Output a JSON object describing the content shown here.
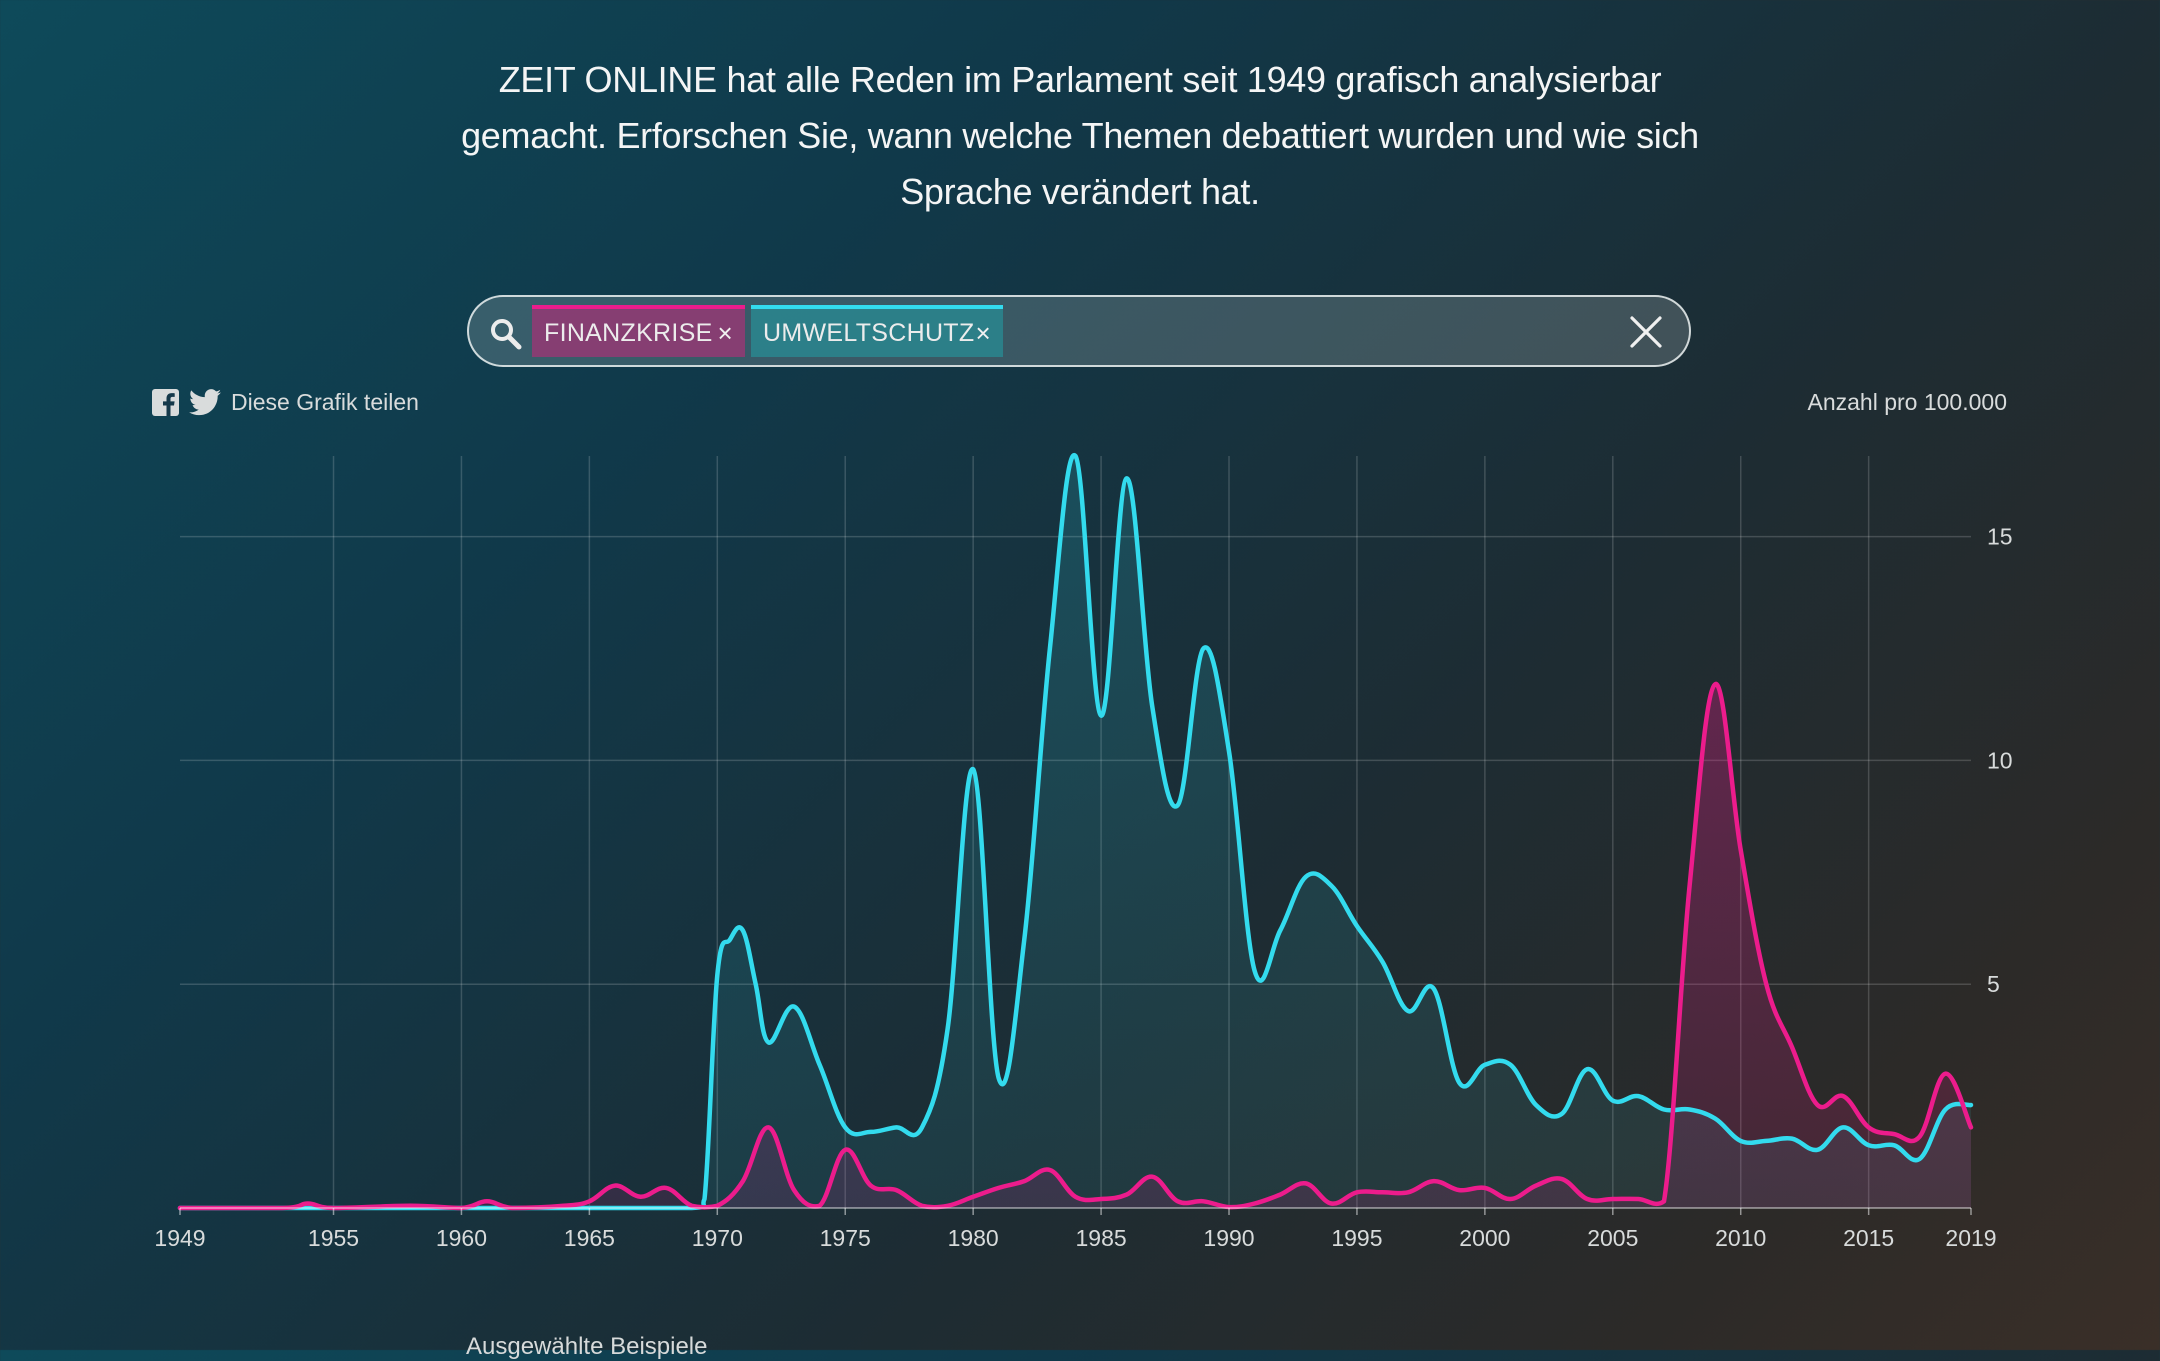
{
  "header": {
    "intro_text": "ZEIT ONLINE hat alle Reden im Parlament seit 1949 grafisch analysierbar gemacht. Erforschen Sie, wann welche Themen debattiert wurden und wie sich Sprache verändert hat."
  },
  "search": {
    "tags": [
      {
        "label": "FINANZKRISE",
        "remove_glyph": "×"
      },
      {
        "label": "UMWELTSCHUTZ",
        "remove_glyph": "×"
      }
    ]
  },
  "share": {
    "label": "Diese Grafik teilen"
  },
  "colors": {
    "finanzkrise": "#ec1c8c",
    "umweltschutz": "#33dbee"
  },
  "footer": {
    "label": "Ausgewählte Beispiele"
  },
  "chart_data": {
    "type": "line",
    "title": "",
    "xlabel": "",
    "ylabel": "Anzahl pro 100.000",
    "xlim": [
      1949,
      2019
    ],
    "ylim": [
      0,
      16.8
    ],
    "x_ticks": [
      1949,
      1955,
      1960,
      1965,
      1970,
      1975,
      1980,
      1985,
      1990,
      1995,
      2000,
      2005,
      2010,
      2015,
      2019
    ],
    "y_ticks": [
      5,
      10,
      15
    ],
    "grid": true,
    "series": [
      {
        "name": "UMWELTSCHUTZ",
        "points": [
          [
            1949,
            0
          ],
          [
            1955,
            0
          ],
          [
            1960,
            0
          ],
          [
            1965,
            0
          ],
          [
            1969,
            0
          ],
          [
            1969.5,
            0.2
          ],
          [
            1970,
            5.2
          ],
          [
            1970.5,
            6.0
          ],
          [
            1971,
            6.2
          ],
          [
            1971.5,
            5.0
          ],
          [
            1972,
            3.7
          ],
          [
            1973,
            4.5
          ],
          [
            1974,
            3.2
          ],
          [
            1975,
            1.8
          ],
          [
            1976,
            1.7
          ],
          [
            1977,
            1.8
          ],
          [
            1978,
            1.8
          ],
          [
            1979,
            4.0
          ],
          [
            1980,
            9.8
          ],
          [
            1981,
            2.9
          ],
          [
            1982,
            6.0
          ],
          [
            1983,
            12.5
          ],
          [
            1984,
            16.8
          ],
          [
            1985,
            11.0
          ],
          [
            1986,
            16.3
          ],
          [
            1987,
            11.2
          ],
          [
            1988,
            9.0
          ],
          [
            1989,
            12.5
          ],
          [
            1990,
            10.2
          ],
          [
            1991,
            5.3
          ],
          [
            1992,
            6.2
          ],
          [
            1993,
            7.4
          ],
          [
            1994,
            7.2
          ],
          [
            1995,
            6.3
          ],
          [
            1996,
            5.5
          ],
          [
            1997,
            4.4
          ],
          [
            1998,
            4.9
          ],
          [
            1999,
            2.8
          ],
          [
            2000,
            3.2
          ],
          [
            2001,
            3.2
          ],
          [
            2002,
            2.3
          ],
          [
            2003,
            2.1
          ],
          [
            2004,
            3.1
          ],
          [
            2005,
            2.4
          ],
          [
            2006,
            2.5
          ],
          [
            2007,
            2.2
          ],
          [
            2008,
            2.2
          ],
          [
            2009,
            2.0
          ],
          [
            2010,
            1.5
          ],
          [
            2011,
            1.5
          ],
          [
            2012,
            1.55
          ],
          [
            2013,
            1.3
          ],
          [
            2014,
            1.8
          ],
          [
            2015,
            1.4
          ],
          [
            2016,
            1.4
          ],
          [
            2017,
            1.1
          ],
          [
            2018,
            2.2
          ],
          [
            2019,
            2.3
          ]
        ]
      },
      {
        "name": "FINANZKRISE",
        "points": [
          [
            1949,
            0
          ],
          [
            1953,
            0
          ],
          [
            1954,
            0.1
          ],
          [
            1955,
            0
          ],
          [
            1958,
            0.05
          ],
          [
            1960,
            0
          ],
          [
            1961,
            0.15
          ],
          [
            1962,
            0
          ],
          [
            1964,
            0.05
          ],
          [
            1965,
            0.15
          ],
          [
            1966,
            0.5
          ],
          [
            1967,
            0.25
          ],
          [
            1968,
            0.45
          ],
          [
            1969,
            0.05
          ],
          [
            1970,
            0.05
          ],
          [
            1971,
            0.6
          ],
          [
            1972,
            1.8
          ],
          [
            1973,
            0.4
          ],
          [
            1974,
            0.05
          ],
          [
            1975,
            1.3
          ],
          [
            1976,
            0.5
          ],
          [
            1977,
            0.4
          ],
          [
            1978,
            0.05
          ],
          [
            1979,
            0.05
          ],
          [
            1980,
            0.25
          ],
          [
            1981,
            0.45
          ],
          [
            1982,
            0.6
          ],
          [
            1983,
            0.85
          ],
          [
            1984,
            0.25
          ],
          [
            1985,
            0.2
          ],
          [
            1986,
            0.3
          ],
          [
            1987,
            0.7
          ],
          [
            1988,
            0.15
          ],
          [
            1989,
            0.15
          ],
          [
            1990,
            0.02
          ],
          [
            1991,
            0.1
          ],
          [
            1992,
            0.3
          ],
          [
            1993,
            0.55
          ],
          [
            1994,
            0.1
          ],
          [
            1995,
            0.35
          ],
          [
            1996,
            0.35
          ],
          [
            1997,
            0.35
          ],
          [
            1998,
            0.6
          ],
          [
            1999,
            0.4
          ],
          [
            2000,
            0.45
          ],
          [
            2001,
            0.2
          ],
          [
            2002,
            0.5
          ],
          [
            2003,
            0.65
          ],
          [
            2004,
            0.2
          ],
          [
            2005,
            0.2
          ],
          [
            2006,
            0.2
          ],
          [
            2007,
            0.15
          ],
          [
            2008,
            7.2
          ],
          [
            2009,
            11.7
          ],
          [
            2010,
            8.0
          ],
          [
            2011,
            5.0
          ],
          [
            2012,
            3.6
          ],
          [
            2013,
            2.3
          ],
          [
            2014,
            2.5
          ],
          [
            2015,
            1.8
          ],
          [
            2016,
            1.65
          ],
          [
            2017,
            1.6
          ],
          [
            2018,
            3.0
          ],
          [
            2019,
            1.8
          ]
        ]
      }
    ]
  }
}
